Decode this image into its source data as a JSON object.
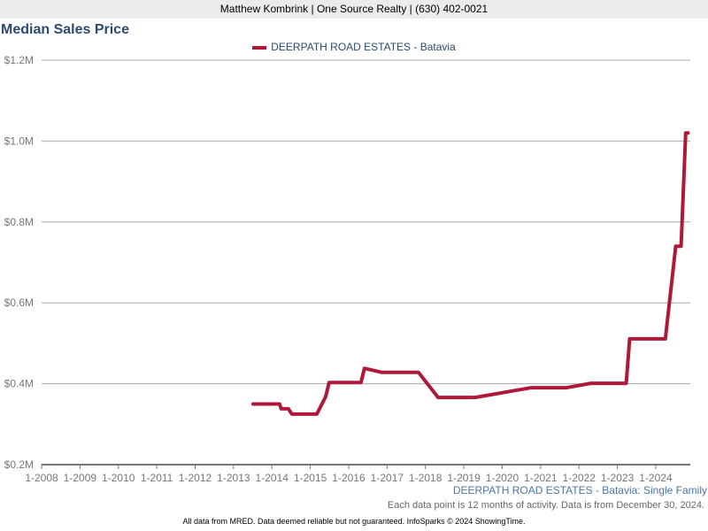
{
  "header": {
    "agent": "Matthew Kombrink | One Source Realty | (630) 402-0021"
  },
  "chart_data": {
    "type": "line",
    "title": "Median Sales Price",
    "legend": [
      "DEERPATH ROAD ESTATES - Batavia"
    ],
    "legend_placement": "top-center",
    "color": "#b0183a",
    "xlabel": "",
    "ylabel": "",
    "y_ticks": [
      "$0.2M",
      "$0.4M",
      "$0.6M",
      "$0.8M",
      "$1.0M",
      "$1.2M"
    ],
    "y_tick_values": [
      0.2,
      0.4,
      0.6,
      0.8,
      1.0,
      1.2
    ],
    "ylim": [
      0.2,
      1.2
    ],
    "x_ticks": [
      "1-2008",
      "1-2009",
      "1-2010",
      "1-2011",
      "1-2012",
      "1-2013",
      "1-2014",
      "1-2015",
      "1-2016",
      "1-2017",
      "1-2018",
      "1-2019",
      "1-2020",
      "1-2021",
      "1-2022",
      "1-2023",
      "1-2024"
    ],
    "xlim": [
      2008,
      2024.9
    ],
    "grid": true,
    "series": [
      {
        "name": "DEERPATH ROAD ESTATES - Batavia",
        "x": [
          2013.51,
          2014.2,
          2014.24,
          2014.43,
          2014.52,
          2015.17,
          2015.4,
          2015.49,
          2016.32,
          2016.41,
          2016.87,
          2017.82,
          2018.33,
          2019.29,
          2020.74,
          2021.66,
          2022.31,
          2023.23,
          2023.32,
          2024.25,
          2024.52,
          2024.66,
          2024.78,
          2024.84
        ],
        "values": [
          0.35,
          0.35,
          0.338,
          0.338,
          0.325,
          0.325,
          0.368,
          0.403,
          0.403,
          0.438,
          0.428,
          0.428,
          0.366,
          0.366,
          0.39,
          0.39,
          0.401,
          0.401,
          0.511,
          0.511,
          0.74,
          0.74,
          1.02,
          1.02
        ]
      }
    ]
  },
  "source_label": "DEERPATH ROAD ESTATES - Batavia: Single Family",
  "note": "Each data point is 12 months of activity. Data is from December 30, 2024.",
  "footer": "All data from MRED. Data deemed reliable but not guaranteed. InfoSparks © 2024 ShowingTime."
}
